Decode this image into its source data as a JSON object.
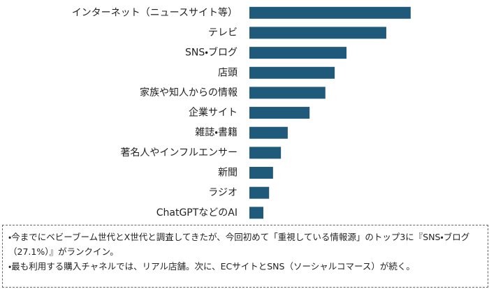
{
  "chart_data": {
    "type": "hbar",
    "categories": [
      "インターネット（ニュースサイト等）",
      "テレビ",
      "SNS・ブログ",
      "店頭",
      "家族や知人からの情報",
      "企業サイト",
      "雑誌・書籍",
      "著名人やインフルエンサー",
      "新聞",
      "ラジオ",
      "ChatGPTなどのAI"
    ],
    "values": [
      45.0,
      38.2,
      27.1,
      23.8,
      21.2,
      16.8,
      10.7,
      8.8,
      6.6,
      5.5,
      3.9
    ],
    "color": "#1f5a7a",
    "xlim": [
      0,
      50
    ],
    "annotations": [
      "・今までにベビーブーム世代とX世代と調査してきたが、今回初めて「重視している情報源」のトップ3に『SNS・ブログ（27.1%）』がランクイン。",
      "・最も利用する購入チャネルでは、リアル店舗。次に、ECサイトとSNS（ソーシャルコマース）が続く。"
    ]
  }
}
